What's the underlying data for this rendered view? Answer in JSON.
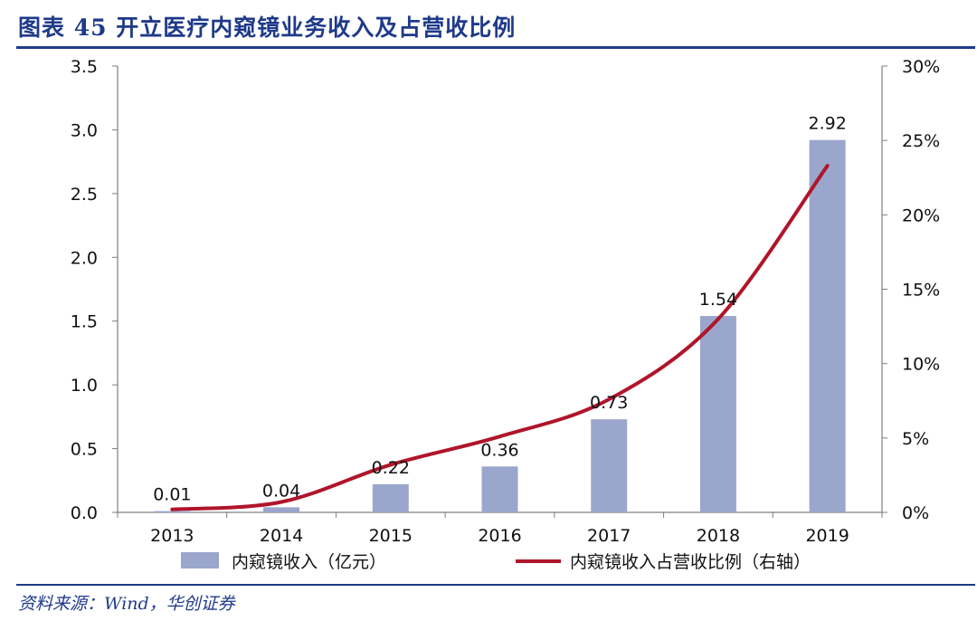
{
  "title": "图表 45 开立医疗内窥镜业务收入及占营收比例",
  "source": "资料来源：Wind，华创证券",
  "colors": {
    "bar": "#9aa6cc",
    "line": "#b0152a",
    "accent": "#1f3a8a"
  },
  "chart_data": {
    "type": "bar",
    "categories": [
      "2013",
      "2014",
      "2015",
      "2016",
      "2017",
      "2018",
      "2019"
    ],
    "series": [
      {
        "name": "内窥镜收入（亿元）",
        "type": "bar",
        "axis": "left",
        "values": [
          0.01,
          0.04,
          0.22,
          0.36,
          0.73,
          1.54,
          2.92
        ],
        "labels": [
          "0.01",
          "0.04",
          "0.22",
          "0.36",
          "0.73",
          "1.54",
          "2.92"
        ]
      },
      {
        "name": "内窥镜收入占营收比例（右轴）",
        "type": "line",
        "axis": "right",
        "values": [
          0.2,
          0.7,
          3.2,
          5.1,
          7.6,
          13.0,
          23.3
        ]
      }
    ],
    "y_left": {
      "ylim": [
        0,
        3.5
      ],
      "ticks": [
        "0.0",
        "0.5",
        "1.0",
        "1.5",
        "2.0",
        "2.5",
        "3.0",
        "3.5"
      ]
    },
    "y_right": {
      "ylim": [
        0,
        30
      ],
      "ticks": [
        "0%",
        "5%",
        "10%",
        "15%",
        "20%",
        "25%",
        "30%"
      ]
    },
    "grid": false,
    "legend": {
      "position": "bottom",
      "items": [
        "内窥镜收入（亿元）",
        "内窥镜收入占营收比例（右轴）"
      ]
    }
  }
}
